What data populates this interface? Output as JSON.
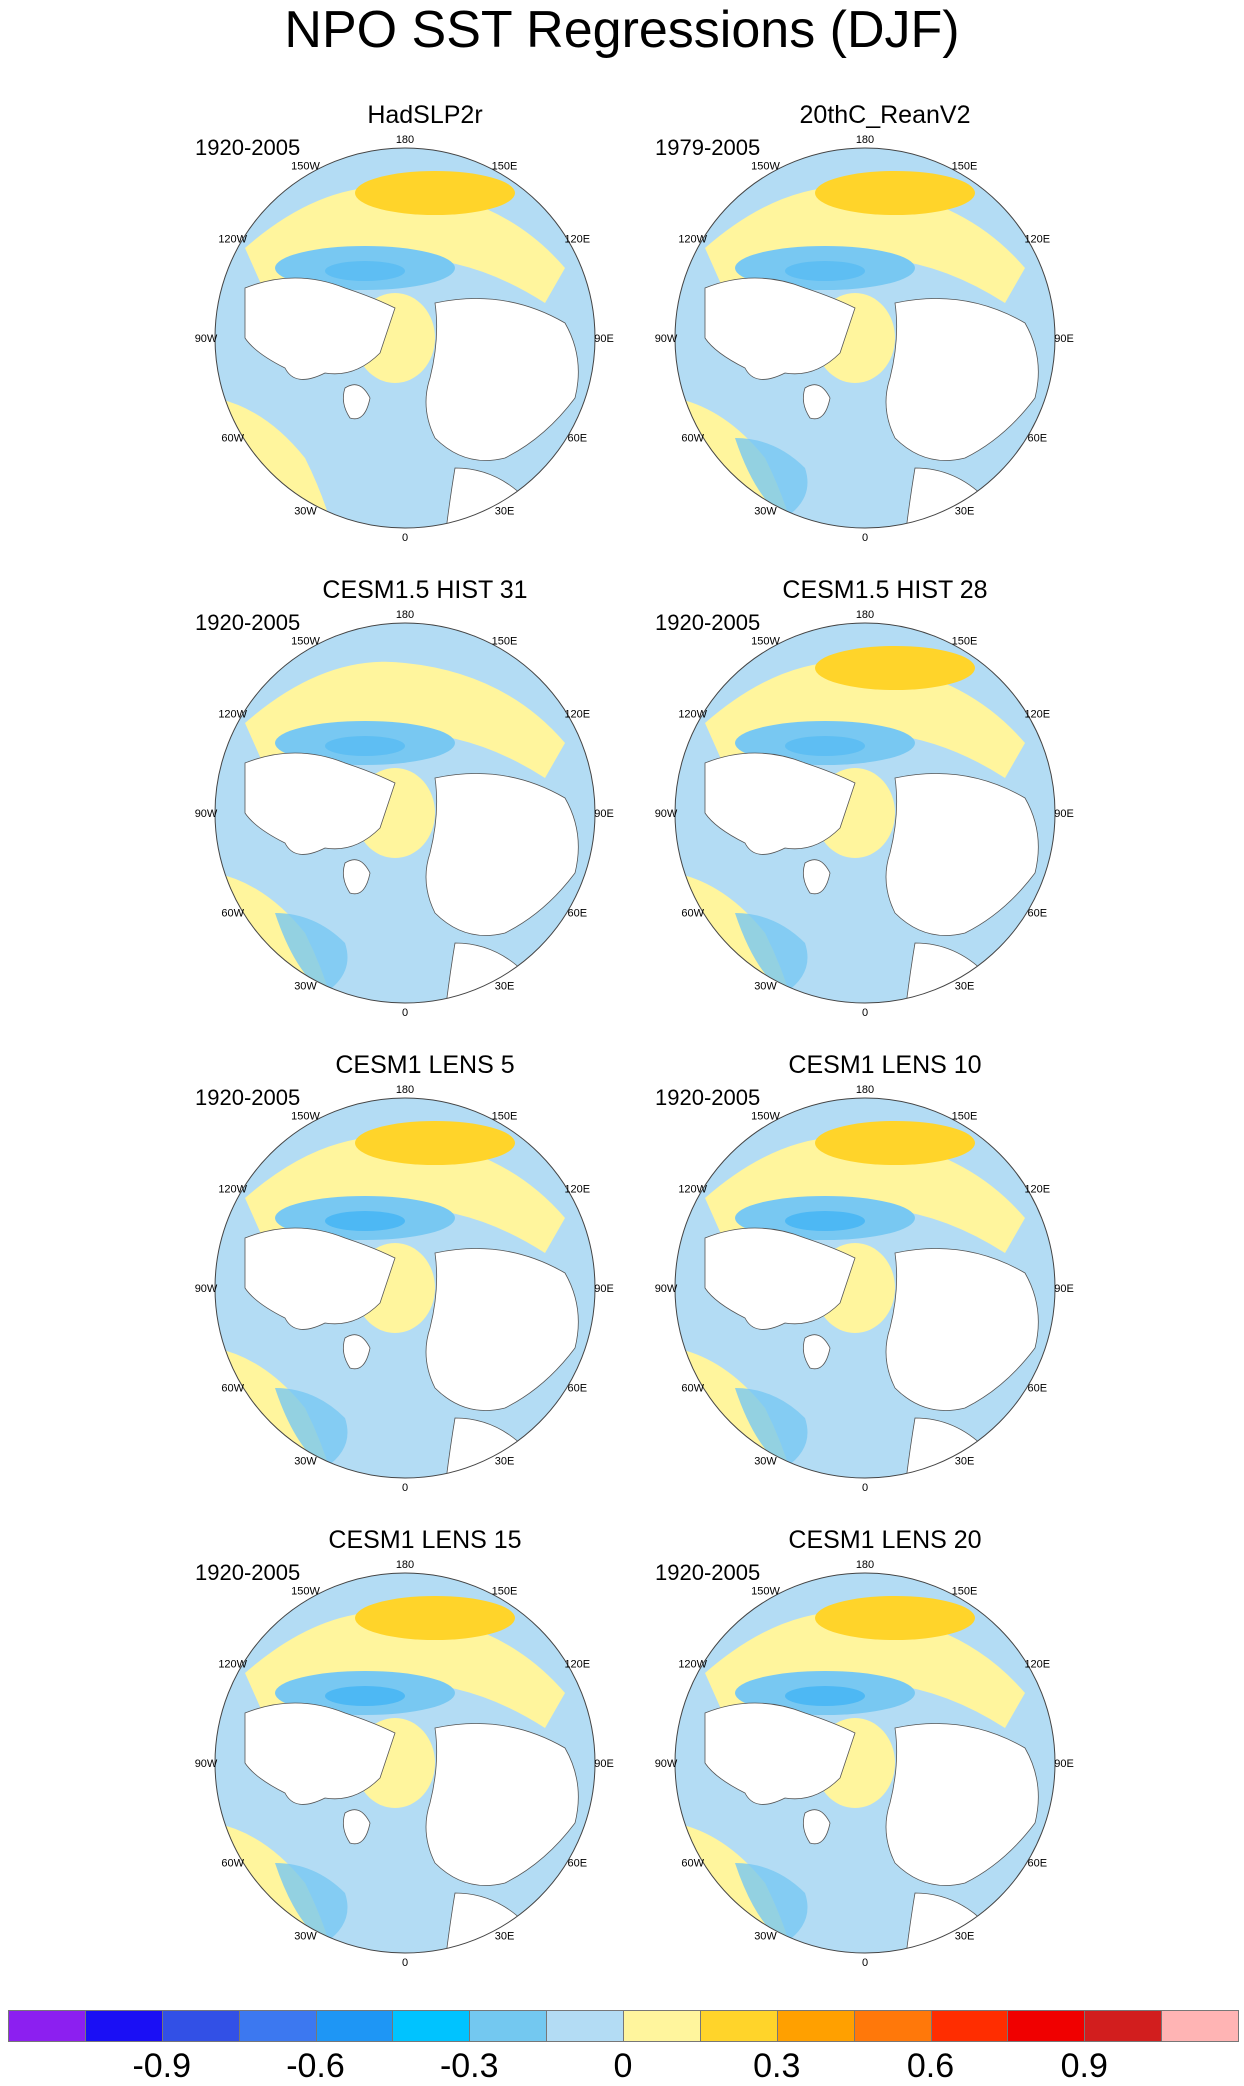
{
  "title": "NPO SST Regressions (DJF)",
  "lon_labels": [
    "180",
    "150E",
    "120E",
    "90E",
    "60E",
    "30E",
    "0",
    "30W",
    "60W",
    "90W",
    "120W",
    "150W"
  ],
  "colors": {
    "ocean_light_blue": "#b3dcf4",
    "blue_mid": "#78c8f2",
    "blue_deep": "#4db8f4",
    "light_yellow": "#fff59d",
    "gold": "#ffd42a",
    "orange": "#ffa000",
    "land": "#ffffff",
    "coast": "#555555"
  },
  "panels": [
    {
      "title": "HadSLP2r",
      "period": "1920-2005"
    },
    {
      "title": "20thC_ReanV2",
      "period": "1979-2005"
    },
    {
      "title": "CESM1.5 HIST 31",
      "period": "1920-2005"
    },
    {
      "title": "CESM1.5 HIST 28",
      "period": "1920-2005"
    },
    {
      "title": "CESM1 LENS 5",
      "period": "1920-2005"
    },
    {
      "title": "CESM1 LENS 10",
      "period": "1920-2005"
    },
    {
      "title": "CESM1 LENS 15",
      "period": "1920-2005"
    },
    {
      "title": "CESM1 LENS 20",
      "period": "1920-2005"
    }
  ],
  "colorbar": {
    "colors": [
      "#8c1ff0",
      "#1a0ff5",
      "#3250e6",
      "#3c78f0",
      "#1e96f5",
      "#00c3ff",
      "#73c8f0",
      "#b3dcf4",
      "#fff59d",
      "#ffd42a",
      "#ffa000",
      "#ff780a",
      "#ff2d00",
      "#f00000",
      "#d21e1e",
      "#ffb4b4"
    ],
    "tick_labels": [
      "-0.9",
      "-0.6",
      "-0.3",
      "0",
      "0.3",
      "0.6",
      "0.9"
    ]
  }
}
